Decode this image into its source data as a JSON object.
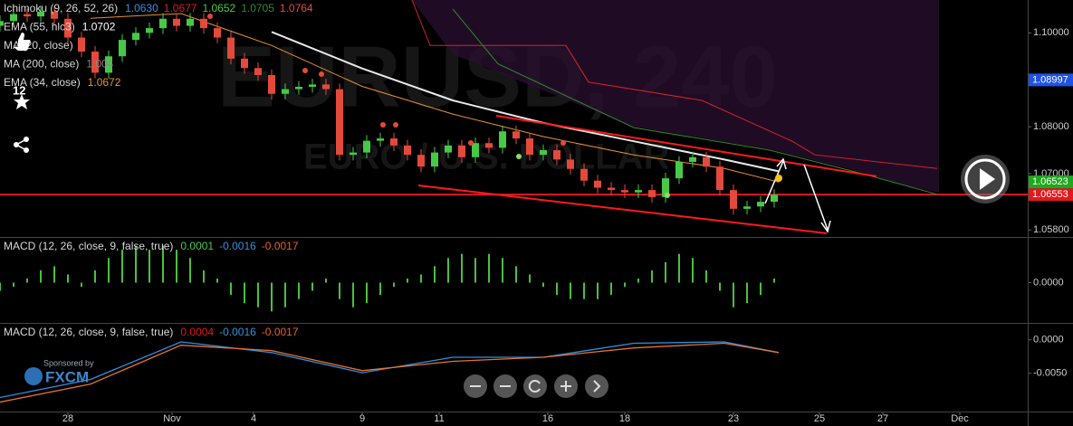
{
  "chart_data": [
    {
      "type": "candlestick",
      "watermark": "EURUSD, 240",
      "watermark_subtitle": "EURO / U.S. DOLLAR",
      "up_color": "#47c947",
      "down_color": "#e34a3b",
      "xlim": [
        0,
        227
      ],
      "ylim": [
        1.0565,
        1.107
      ],
      "yticks": [
        {
          "value": 1.1,
          "label": "1.10000"
        },
        {
          "value": 1.08,
          "label": "1.08000"
        },
        {
          "value": 1.07,
          "label": "1.07000"
        },
        {
          "value": 1.058,
          "label": "1.05800"
        }
      ],
      "xticks": [
        {
          "value": 15,
          "label": "28"
        },
        {
          "value": 38,
          "label": "Nov"
        },
        {
          "value": 56,
          "label": "4"
        },
        {
          "value": 80,
          "label": "9"
        },
        {
          "value": 97,
          "label": "11"
        },
        {
          "value": 121,
          "label": "16"
        },
        {
          "value": 138,
          "label": "18"
        },
        {
          "value": 162,
          "label": "23"
        },
        {
          "value": 181,
          "label": "25"
        },
        {
          "value": 195,
          "label": "27"
        },
        {
          "value": 212,
          "label": "Dec"
        }
      ],
      "x": [
        0,
        3,
        6,
        9,
        12,
        15,
        18,
        21,
        24,
        27,
        30,
        33,
        36,
        39,
        42,
        45,
        48,
        51,
        54,
        57,
        60,
        63,
        66,
        69,
        72,
        75,
        78,
        81,
        84,
        87,
        90,
        93,
        96,
        99,
        102,
        105,
        108,
        111,
        114,
        117,
        120,
        123,
        126,
        129,
        132,
        135,
        138,
        141,
        144,
        147,
        150,
        153,
        156,
        159,
        162,
        165,
        168,
        171
      ],
      "open": [
        1.1015,
        1.1025,
        1.104,
        1.1035,
        1.1045,
        1.103,
        1.099,
        1.096,
        1.0915,
        1.095,
        1.0985,
        1.1,
        1.101,
        1.103,
        1.1015,
        1.103,
        1.101,
        1.099,
        1.0945,
        1.0925,
        1.091,
        1.087,
        1.088,
        1.0885,
        1.089,
        1.088,
        1.074,
        1.0745,
        1.077,
        1.0775,
        1.076,
        1.074,
        1.0715,
        1.0745,
        1.076,
        1.0735,
        1.0765,
        1.0755,
        1.079,
        1.0775,
        1.074,
        1.075,
        1.073,
        1.071,
        1.0685,
        1.067,
        1.0665,
        1.066,
        1.0665,
        1.065,
        1.069,
        1.0725,
        1.0735,
        1.0715,
        1.0665,
        1.0625,
        1.063,
        1.064
      ],
      "high": [
        1.1037,
        1.1052,
        1.1052,
        1.1057,
        1.1057,
        1.1042,
        1.1002,
        1.0972,
        1.0962,
        1.0997,
        1.1012,
        1.1022,
        1.1042,
        1.1042,
        1.1042,
        1.1042,
        1.1022,
        1.1002,
        1.0957,
        1.0937,
        1.0922,
        1.0892,
        1.0897,
        1.0902,
        1.0902,
        1.0892,
        1.0757,
        1.0782,
        1.0787,
        1.0787,
        1.0772,
        1.0752,
        1.0757,
        1.0772,
        1.0772,
        1.0777,
        1.0777,
        1.0802,
        1.0802,
        1.0787,
        1.0762,
        1.0762,
        1.0742,
        1.0722,
        1.0697,
        1.0682,
        1.0677,
        1.0677,
        1.0677,
        1.0702,
        1.0737,
        1.0747,
        1.0747,
        1.0727,
        1.0677,
        1.0642,
        1.0652,
        1.0667
      ],
      "low": [
        1.1003,
        1.1013,
        1.1023,
        1.1023,
        1.1018,
        1.0978,
        1.0948,
        1.0903,
        1.0903,
        1.0938,
        1.0973,
        1.0988,
        1.0998,
        1.1003,
        1.1003,
        1.0998,
        1.0978,
        1.0933,
        1.0913,
        1.0898,
        1.0858,
        1.0858,
        1.0868,
        1.0873,
        1.0868,
        1.0728,
        1.0728,
        1.0733,
        1.0758,
        1.0748,
        1.0728,
        1.0703,
        1.0703,
        1.0733,
        1.0723,
        1.0723,
        1.0743,
        1.0743,
        1.0763,
        1.0728,
        1.0728,
        1.0718,
        1.0698,
        1.0673,
        1.0658,
        1.0653,
        1.0648,
        1.0648,
        1.0638,
        1.0638,
        1.0678,
        1.0713,
        1.0703,
        1.0653,
        1.0613,
        1.0613,
        1.0618,
        1.0628
      ],
      "close": [
        1.1025,
        1.104,
        1.1035,
        1.1045,
        1.103,
        1.099,
        1.096,
        1.0915,
        1.095,
        1.0985,
        1.1,
        1.101,
        1.103,
        1.1015,
        1.103,
        1.101,
        1.099,
        1.0945,
        1.0925,
        1.091,
        1.087,
        1.088,
        1.0885,
        1.089,
        1.088,
        1.074,
        1.0745,
        1.077,
        1.0775,
        1.076,
        1.074,
        1.0715,
        1.0745,
        1.076,
        1.0735,
        1.0765,
        1.0755,
        1.079,
        1.0775,
        1.074,
        1.075,
        1.073,
        1.071,
        1.0685,
        1.067,
        1.0665,
        1.066,
        1.0665,
        1.065,
        1.069,
        1.0725,
        1.0735,
        1.0715,
        1.0665,
        1.0625,
        1.063,
        1.064,
        1.0655
      ],
      "lines": [
        {
          "color": "#e8e8e8",
          "width": 2,
          "x": [
            60,
            80,
            100,
            120,
            140,
            160,
            172
          ],
          "values": [
            1.1002,
            1.0924,
            1.0856,
            1.0808,
            1.0769,
            1.073,
            1.0705
          ]
        },
        {
          "color": "#e8912d",
          "width": 1,
          "x": [
            20,
            40,
            60,
            80,
            100,
            120,
            140,
            160,
            172
          ],
          "values": [
            1.1031,
            1.1041,
            1.0973,
            1.0886,
            1.0827,
            1.0779,
            1.074,
            1.0711,
            1.0682
          ]
        },
        {
          "color": "#d8202a",
          "width": 1,
          "x": [
            91,
            95,
            125,
            130,
            155,
            175,
            180,
            207
          ],
          "values": [
            1.107,
            1.0973,
            1.0973,
            1.0895,
            1.0856,
            1.0769,
            1.074,
            1.0711
          ]
        },
        {
          "color": "#2e8b2e",
          "width": 1,
          "x": [
            100,
            110,
            140,
            170,
            190,
            207
          ],
          "values": [
            1.1051,
            1.0934,
            1.0798,
            1.075,
            1.0701,
            1.0656
          ]
        }
      ],
      "legend": [
        {
          "name": "Ichimoku (9, 26, 52, 26)",
          "readings": [
            "1.0630",
            "1.0677",
            "1.0652",
            "1.0705",
            "1.0764"
          ],
          "colors": [
            "#3a8fd8",
            "#d8202a",
            "#47c947",
            "#2e8b2e",
            "#e34a3b"
          ]
        },
        {
          "name": "EMA (55, hlc3)",
          "readings": [
            "1.0702"
          ],
          "colors": [
            "#ffffff"
          ]
        },
        {
          "name": "MA (20, close)"
        },
        {
          "name": "MA (200, close)",
          "readings": [
            "1.004"
          ],
          "colors": [
            "#888888"
          ]
        },
        {
          "name": "EMA (34, close)",
          "readings": [
            "1.0672"
          ],
          "colors": [
            "#e8912d"
          ]
        }
      ],
      "price_labels": [
        {
          "value": 1.08997,
          "color": "#1e53e5"
        },
        {
          "value": 1.06553,
          "color": "#e0191f"
        },
        {
          "value": 1.06523,
          "color": "#1fa81f"
        }
      ],
      "hline": {
        "value": 1.06553,
        "color": "#e0191f"
      }
    },
    {
      "type": "histogram",
      "xlim": [
        0,
        227
      ],
      "ylim": [
        -0.00098,
        0.00109
      ],
      "color": "#4cbf3c",
      "yticks": [
        {
          "value": 0,
          "label": "0.0000"
        }
      ],
      "x": [
        0,
        3,
        6,
        9,
        12,
        15,
        18,
        21,
        24,
        27,
        30,
        33,
        36,
        39,
        42,
        45,
        48,
        51,
        54,
        57,
        60,
        63,
        66,
        69,
        72,
        75,
        78,
        81,
        84,
        87,
        90,
        93,
        96,
        99,
        102,
        105,
        108,
        111,
        114,
        117,
        120,
        123,
        126,
        129,
        132,
        135,
        138,
        141,
        144,
        147,
        150,
        153,
        156,
        159,
        162,
        165,
        168,
        171
      ],
      "values": [
        -0.0002,
        -0.0001,
        0.0001,
        0.0003,
        0.0004,
        0.0002,
        -0.0001,
        0.0003,
        0.0006,
        0.0008,
        0.0009,
        0.0008,
        0.0009,
        0.0008,
        0.0006,
        0.0003,
        0.0001,
        -0.0003,
        -0.0005,
        -0.0006,
        -0.0007,
        -0.0006,
        -0.0004,
        -0.0002,
        0.0001,
        -0.0004,
        -0.0006,
        -0.0005,
        -0.0003,
        -0.0001,
        0.0001,
        0.0002,
        0.0004,
        0.0006,
        0.0007,
        0.0006,
        0.0007,
        0.0006,
        0.0004,
        0.0002,
        -0.0001,
        -0.0003,
        -0.0004,
        -0.0004,
        -0.0004,
        -0.0003,
        -0.0001,
        0.0001,
        0.0003,
        0.0005,
        0.0007,
        0.0006,
        0.0003,
        -0.0002,
        -0.0006,
        -0.0005,
        -0.0003,
        0.0001
      ],
      "legend": [
        {
          "name": "MACD (12, 26, close, 9, false, true)",
          "readings": [
            "0.0001",
            "-0.0016",
            "-0.0017"
          ],
          "colors": [
            "#47c947",
            "#3a8fd8",
            "#e8602d"
          ]
        }
      ]
    },
    {
      "type": "line",
      "xlim": [
        0,
        227
      ],
      "ylim": [
        -0.0107,
        0.0024
      ],
      "yticks": [
        {
          "value": 0,
          "label": "0.0000"
        },
        {
          "value": -0.005,
          "label": "-0.0050"
        }
      ],
      "series": [
        {
          "color": "#2f8fe0",
          "x": [
            0,
            20,
            40,
            60,
            80,
            100,
            120,
            140,
            160,
            172
          ],
          "values": [
            -0.0086,
            -0.0059,
            -0.0003,
            -0.0019,
            -0.0049,
            -0.0026,
            -0.0026,
            -0.0005,
            -0.0003,
            -0.0019
          ]
        },
        {
          "color": "#e8712d",
          "x": [
            0,
            20,
            40,
            60,
            80,
            100,
            120,
            140,
            160,
            172
          ],
          "values": [
            -0.0093,
            -0.0066,
            -0.0008,
            -0.0016,
            -0.0046,
            -0.0032,
            -0.0026,
            -0.0012,
            -0.0005,
            -0.0019
          ]
        }
      ],
      "legend": [
        {
          "name": "MACD (12, 26, close, 9, false, true)",
          "readings": [
            "0.0004",
            "-0.0016",
            "-0.0017"
          ],
          "colors": [
            "#e0191f",
            "#3a8fd8",
            "#e8602d"
          ]
        }
      ]
    }
  ],
  "ui": {
    "likes": "12",
    "sponsor_caption": "Sponsored by",
    "sponsor": "FXCM"
  }
}
